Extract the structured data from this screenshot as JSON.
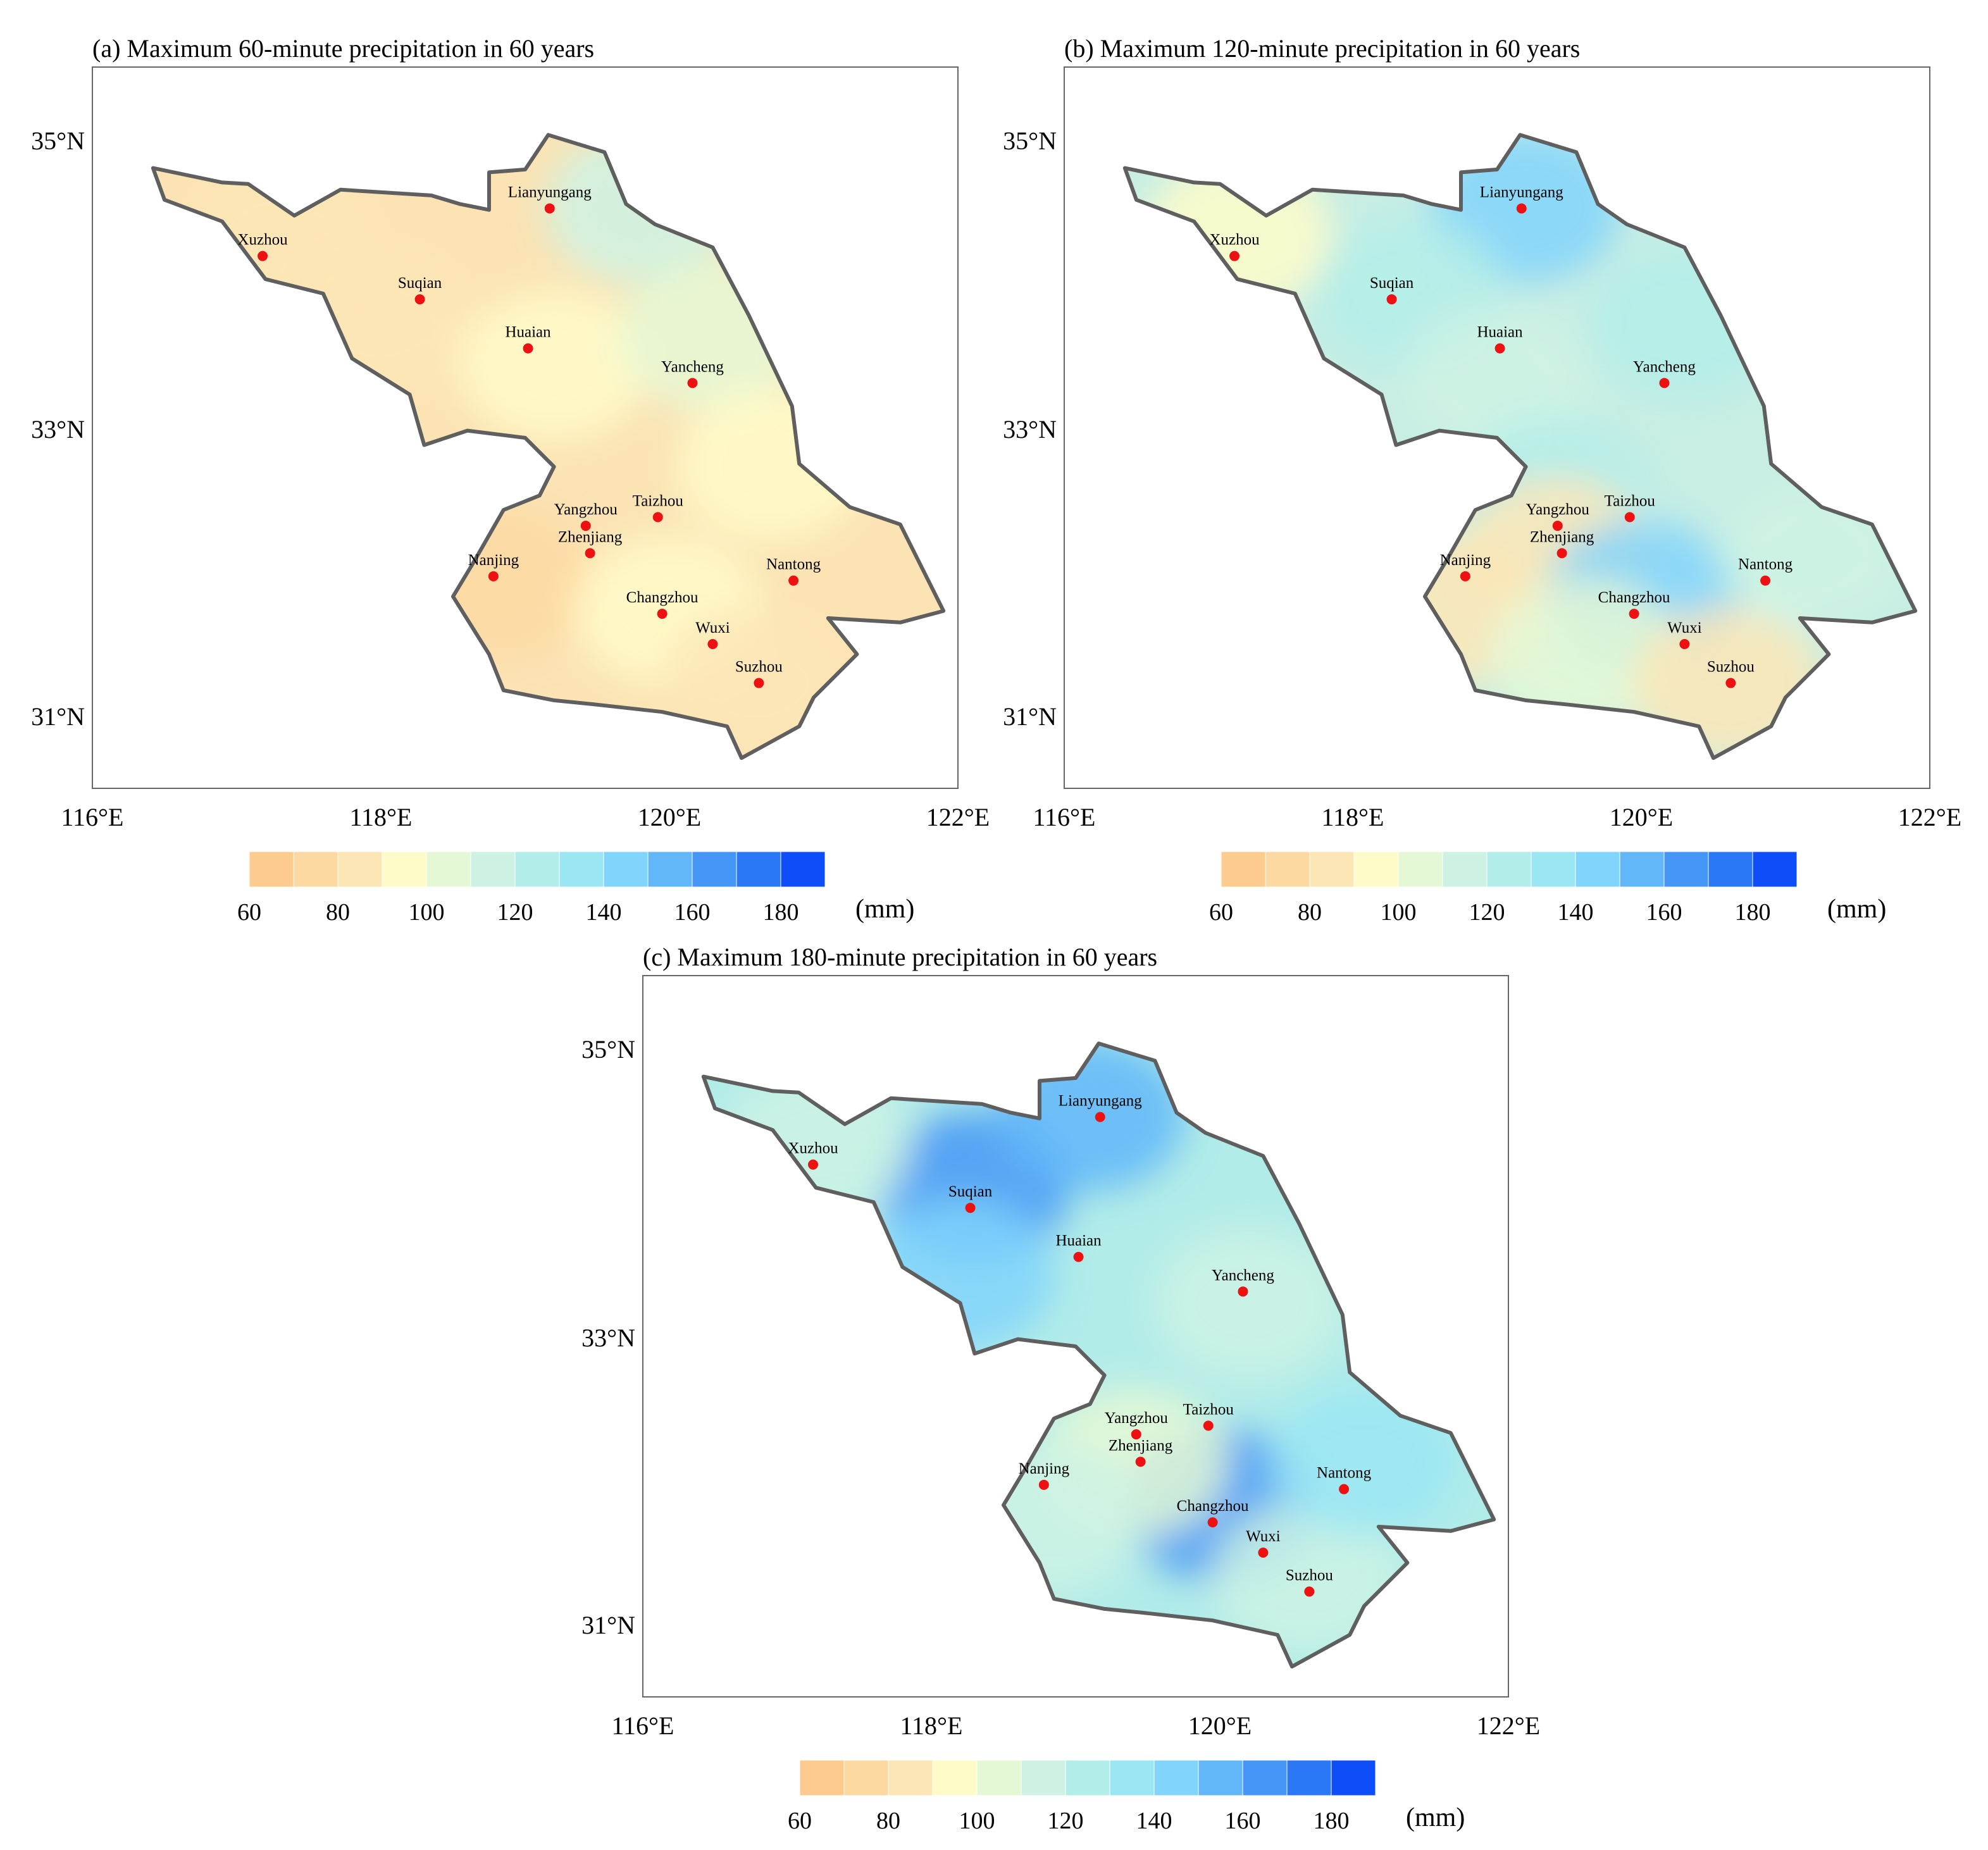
{
  "figure": {
    "panels": [
      {
        "id": "a",
        "title": "(a) Maximum 60-minute precipitation in 60 years",
        "province_color": "#fbe3b4",
        "blobs": [
          {
            "lon": 118.8,
            "lat": 32.0,
            "level": 70
          },
          {
            "lon": 117.3,
            "lat": 34.4,
            "level": 85
          },
          {
            "lon": 118.0,
            "lat": 33.8,
            "level": 87
          },
          {
            "lon": 119.2,
            "lat": 33.5,
            "level": 95
          },
          {
            "lon": 119.8,
            "lat": 34.6,
            "level": 110
          },
          {
            "lon": 120.3,
            "lat": 33.7,
            "level": 108
          },
          {
            "lon": 120.7,
            "lat": 32.8,
            "level": 92
          },
          {
            "lon": 120.0,
            "lat": 31.8,
            "level": 95
          },
          {
            "lon": 120.6,
            "lat": 31.3,
            "level": 82
          }
        ]
      },
      {
        "id": "b",
        "title": "(b) Maximum 120-minute precipitation in 60 years",
        "province_color": "#c8eee4",
        "blobs": [
          {
            "lon": 119.2,
            "lat": 34.6,
            "level": 145
          },
          {
            "lon": 117.2,
            "lat": 34.4,
            "level": 98
          },
          {
            "lon": 118.4,
            "lat": 34.0,
            "level": 125
          },
          {
            "lon": 119.0,
            "lat": 33.4,
            "level": 110
          },
          {
            "lon": 120.3,
            "lat": 33.8,
            "level": 125
          },
          {
            "lon": 119.4,
            "lat": 32.6,
            "level": 125
          },
          {
            "lon": 119.4,
            "lat": 32.2,
            "level": 85
          },
          {
            "lon": 118.7,
            "lat": 31.8,
            "level": 82
          },
          {
            "lon": 120.0,
            "lat": 31.9,
            "level": 140
          },
          {
            "lon": 119.6,
            "lat": 31.5,
            "level": 100
          },
          {
            "lon": 120.6,
            "lat": 31.3,
            "level": 85
          },
          {
            "lon": 121.2,
            "lat": 32.2,
            "level": 118
          }
        ]
      },
      {
        "id": "c",
        "title": "(c) Maximum 180-minute precipitation in 60 years",
        "province_color": "#b2ece9",
        "blobs": [
          {
            "lon": 118.3,
            "lat": 34.1,
            "level": 168
          },
          {
            "lon": 119.1,
            "lat": 34.6,
            "level": 155
          },
          {
            "lon": 117.2,
            "lat": 34.4,
            "level": 112
          },
          {
            "lon": 118.2,
            "lat": 33.5,
            "level": 145
          },
          {
            "lon": 120.2,
            "lat": 33.3,
            "level": 115
          },
          {
            "lon": 120.0,
            "lat": 31.9,
            "level": 160
          },
          {
            "lon": 119.4,
            "lat": 32.2,
            "level": 100
          },
          {
            "lon": 118.8,
            "lat": 31.8,
            "level": 118
          },
          {
            "lon": 120.6,
            "lat": 31.4,
            "level": 118
          },
          {
            "lon": 121.0,
            "lat": 32.2,
            "level": 132
          }
        ]
      }
    ],
    "lon_ticks": [
      "116°E",
      "118°E",
      "120°E",
      "122°E"
    ],
    "lat_ticks": [
      "31°N",
      "33°N",
      "35°N"
    ],
    "colorbar": {
      "levels": [
        60,
        70,
        80,
        90,
        100,
        110,
        120,
        130,
        140,
        150,
        160,
        170,
        180,
        190
      ],
      "colors": [
        "#fdcb8d",
        "#fdd9a2",
        "#fde6b6",
        "#fffbc9",
        "#e5f8d5",
        "#cdf2e4",
        "#b3ede9",
        "#9be6f3",
        "#81d4fb",
        "#62b7f9",
        "#4596f6",
        "#2a78f5",
        "#0d4ef8"
      ],
      "labels": [
        "60",
        "80",
        "100",
        "120",
        "140",
        "160",
        "180"
      ],
      "unit": "(mm)"
    },
    "cities": [
      {
        "name": "Lianyungang",
        "lon": 119.17,
        "lat": 34.59
      },
      {
        "name": "Xuzhou",
        "lon": 117.18,
        "lat": 34.26
      },
      {
        "name": "Suqian",
        "lon": 118.27,
        "lat": 33.96
      },
      {
        "name": "Huaian",
        "lon": 119.02,
        "lat": 33.62
      },
      {
        "name": "Yancheng",
        "lon": 120.16,
        "lat": 33.38
      },
      {
        "name": "Taizhou",
        "lon": 119.92,
        "lat": 32.45
      },
      {
        "name": "Yangzhou",
        "lon": 119.42,
        "lat": 32.39
      },
      {
        "name": "Zhenjiang",
        "lon": 119.45,
        "lat": 32.2
      },
      {
        "name": "Nanjing",
        "lon": 118.78,
        "lat": 32.04
      },
      {
        "name": "Changzhou",
        "lon": 119.95,
        "lat": 31.78
      },
      {
        "name": "Nantong",
        "lon": 120.86,
        "lat": 32.01
      },
      {
        "name": "Wuxi",
        "lon": 120.3,
        "lat": 31.57
      },
      {
        "name": "Suzhou",
        "lon": 120.62,
        "lat": 31.3
      }
    ],
    "outline": [
      [
        116.42,
        34.87
      ],
      [
        116.9,
        34.77
      ],
      [
        117.08,
        34.76
      ],
      [
        117.4,
        34.54
      ],
      [
        117.72,
        34.72
      ],
      [
        118.35,
        34.68
      ],
      [
        118.55,
        34.62
      ],
      [
        118.75,
        34.58
      ],
      [
        118.75,
        34.84
      ],
      [
        119.0,
        34.86
      ],
      [
        119.16,
        35.1
      ],
      [
        119.55,
        34.98
      ],
      [
        119.7,
        34.62
      ],
      [
        119.9,
        34.48
      ],
      [
        120.3,
        34.32
      ],
      [
        120.55,
        33.85
      ],
      [
        120.85,
        33.22
      ],
      [
        120.9,
        32.82
      ],
      [
        121.25,
        32.52
      ],
      [
        121.6,
        32.4
      ],
      [
        121.9,
        31.8
      ],
      [
        121.6,
        31.72
      ],
      [
        121.1,
        31.75
      ],
      [
        121.3,
        31.5
      ],
      [
        121.0,
        31.2
      ],
      [
        120.9,
        31.0
      ],
      [
        120.5,
        30.78
      ],
      [
        120.4,
        31.0
      ],
      [
        119.95,
        31.1
      ],
      [
        119.5,
        31.15
      ],
      [
        119.2,
        31.18
      ],
      [
        118.85,
        31.25
      ],
      [
        118.75,
        31.5
      ],
      [
        118.5,
        31.9
      ],
      [
        118.65,
        32.15
      ],
      [
        118.85,
        32.5
      ],
      [
        119.1,
        32.6
      ],
      [
        119.2,
        32.8
      ],
      [
        119.0,
        33.0
      ],
      [
        118.6,
        33.05
      ],
      [
        118.3,
        32.95
      ],
      [
        118.2,
        33.3
      ],
      [
        117.8,
        33.55
      ],
      [
        117.6,
        34.0
      ],
      [
        117.2,
        34.1
      ],
      [
        116.9,
        34.5
      ],
      [
        116.5,
        34.65
      ]
    ]
  }
}
